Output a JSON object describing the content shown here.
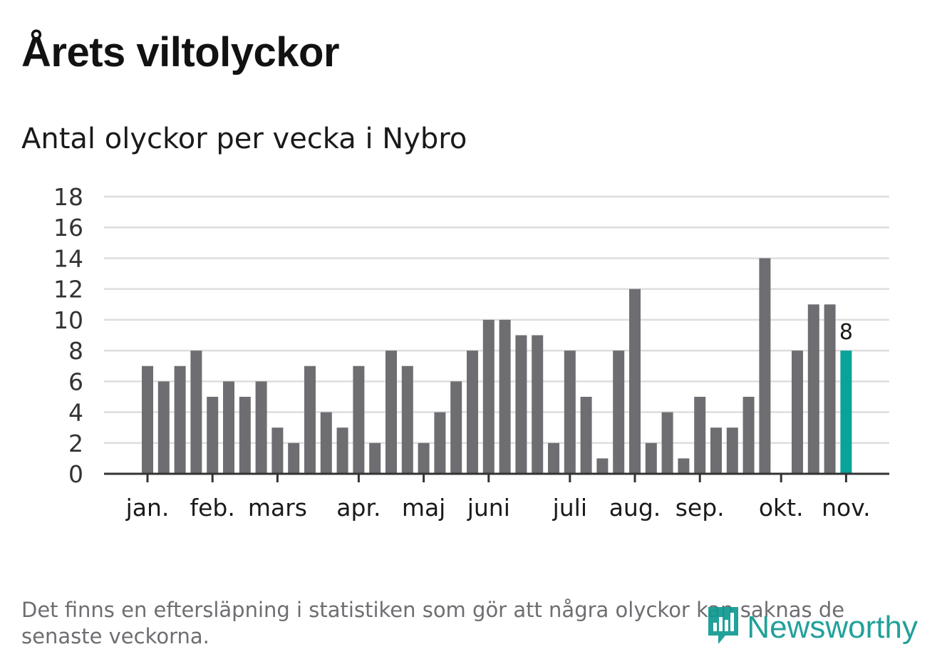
{
  "title": "Årets viltolyckor",
  "subtitle": "Antal olyckor per vecka i Nybro",
  "note": "Det finns en eftersläpning i statistiken som gör att några olyckor kan saknas de senaste veckorna.",
  "brand": {
    "name": "Newsworthy",
    "icon": "newsworthy-logo-icon"
  },
  "colors": {
    "bar": "#6e6d72",
    "highlight": "#0aa39a",
    "grid": "#dddddd",
    "axis": "#333333"
  },
  "chart_data": {
    "type": "bar",
    "values": [
      7,
      6,
      7,
      8,
      5,
      6,
      5,
      6,
      3,
      2,
      7,
      4,
      3,
      7,
      2,
      8,
      7,
      2,
      4,
      6,
      8,
      10,
      10,
      9,
      9,
      2,
      8,
      5,
      1,
      8,
      12,
      2,
      4,
      1,
      5,
      3,
      3,
      5,
      14,
      0,
      8,
      11,
      11,
      8
    ],
    "highlight_index": 43,
    "highlight_label": "8",
    "ylim": [
      0,
      18
    ],
    "yticks": [
      "0",
      "2",
      "4",
      "6",
      "8",
      "10",
      "12",
      "14",
      "16",
      "18"
    ],
    "month_labels": [
      {
        "label": "jan.",
        "week": 0
      },
      {
        "label": "feb.",
        "week": 4
      },
      {
        "label": "mars",
        "week": 8
      },
      {
        "label": "apr.",
        "week": 13
      },
      {
        "label": "maj",
        "week": 17
      },
      {
        "label": "juni",
        "week": 21
      },
      {
        "label": "juli",
        "week": 26
      },
      {
        "label": "aug.",
        "week": 30
      },
      {
        "label": "sep.",
        "week": 34
      },
      {
        "label": "okt.",
        "week": 39
      },
      {
        "label": "nov.",
        "week": 43
      }
    ],
    "grid": true,
    "legend": "none"
  }
}
